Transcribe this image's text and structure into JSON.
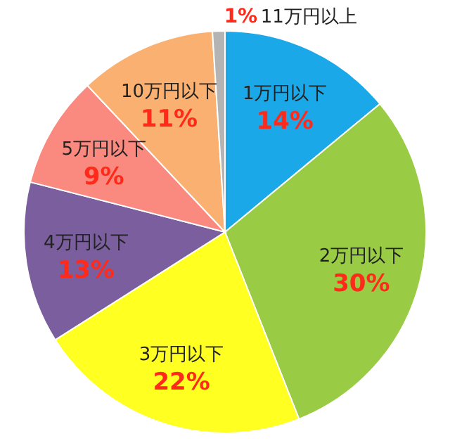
{
  "chart_data": {
    "type": "pie",
    "categories": [
      "1万円以下",
      "2万円以下",
      "3万円以下",
      "4万円以下",
      "5万円以下",
      "10万円以下",
      "11万円以上"
    ],
    "values": [
      14,
      30,
      22,
      13,
      9,
      11,
      1
    ],
    "value_labels": [
      "14%",
      "30%",
      "22%",
      "13%",
      "9%",
      "11%",
      "1%"
    ],
    "colors": [
      "#1aa8e8",
      "#99cc44",
      "#ffff22",
      "#7b5e9e",
      "#fa8a80",
      "#f9b070",
      "#b4b4b4"
    ]
  }
}
